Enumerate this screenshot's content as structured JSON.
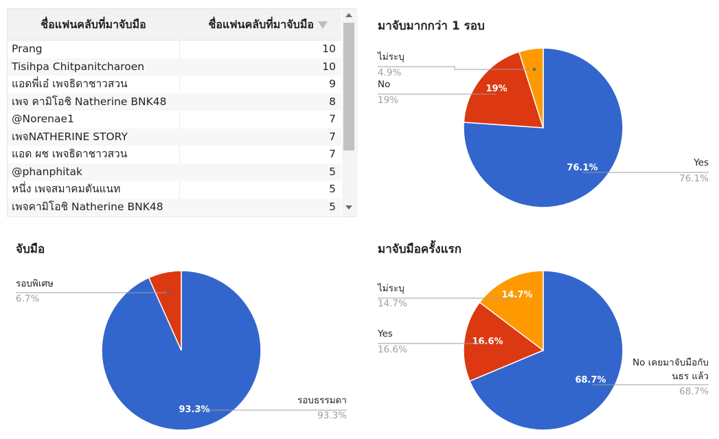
{
  "table": {
    "headers": [
      "ชื่อแฟนคลับที่มาจับมือ",
      "ชื่อแฟนคลับที่มาจับมือ"
    ],
    "rows": [
      {
        "name": "Prang",
        "count": "10"
      },
      {
        "name": "Tisihpa Chitpanitcharoen",
        "count": "10"
      },
      {
        "name": "แอดพี่เอ๋ เพจธิดาชาวสวน",
        "count": "9"
      },
      {
        "name": "เพจ คามิโอชิ Natherine BNK48",
        "count": "8"
      },
      {
        "name": "@Norenae1",
        "count": "7"
      },
      {
        "name": "เพจNATHERINE STORY",
        "count": "7"
      },
      {
        "name": "แอด ผช เพจธิดาชาวสวน",
        "count": "7"
      },
      {
        "name": "@phanphitak",
        "count": "5"
      },
      {
        "name": "หนึ่ง เพจสมาคมตันแนท",
        "count": "5"
      },
      {
        "name": "เพจคามิโอชิ Natherine BNK48",
        "count": "5"
      }
    ]
  },
  "colors": {
    "blue": "#3366cc",
    "red": "#dc3912",
    "orange": "#ff9900",
    "label": "#222222",
    "pct": "#9e9e9e",
    "leader": "#9e9e9e"
  },
  "chart_data": [
    {
      "type": "pie",
      "title": "มาจับมากกว่า 1 รอบ",
      "slices": [
        {
          "label": "Yes",
          "value": 76.1,
          "pct_text": "76.1%",
          "inner_text": "76.1%",
          "color": "#3366cc"
        },
        {
          "label": "No",
          "value": 19,
          "pct_text": "19%",
          "inner_text": "19%",
          "color": "#dc3912"
        },
        {
          "label": "ไม่ระบุ",
          "value": 4.9,
          "pct_text": "4.9%",
          "inner_text": "",
          "color": "#ff9900"
        }
      ],
      "legend": "labeled"
    },
    {
      "type": "pie",
      "title": "จับมือ",
      "slices": [
        {
          "label": "รอบธรรมดา",
          "value": 93.3,
          "pct_text": "93.3%",
          "inner_text": "93.3%",
          "color": "#3366cc"
        },
        {
          "label": "รอบพิเศษ",
          "value": 6.7,
          "pct_text": "6.7%",
          "inner_text": "",
          "color": "#dc3912"
        }
      ],
      "legend": "labeled"
    },
    {
      "type": "pie",
      "title": "มาจับมือครั้งแรก",
      "slices": [
        {
          "label_lines": [
            "No เคยมาจับมือกับ",
            "นธร แล้ว"
          ],
          "value": 68.7,
          "pct_text": "68.7%",
          "inner_text": "68.7%",
          "color": "#3366cc"
        },
        {
          "label": "Yes",
          "value": 16.6,
          "pct_text": "16.6%",
          "inner_text": "16.6%",
          "color": "#dc3912"
        },
        {
          "label": "ไม่ระบุ",
          "value": 14.7,
          "pct_text": "14.7%",
          "inner_text": "14.7%",
          "color": "#ff9900"
        }
      ],
      "legend": "labeled"
    }
  ]
}
